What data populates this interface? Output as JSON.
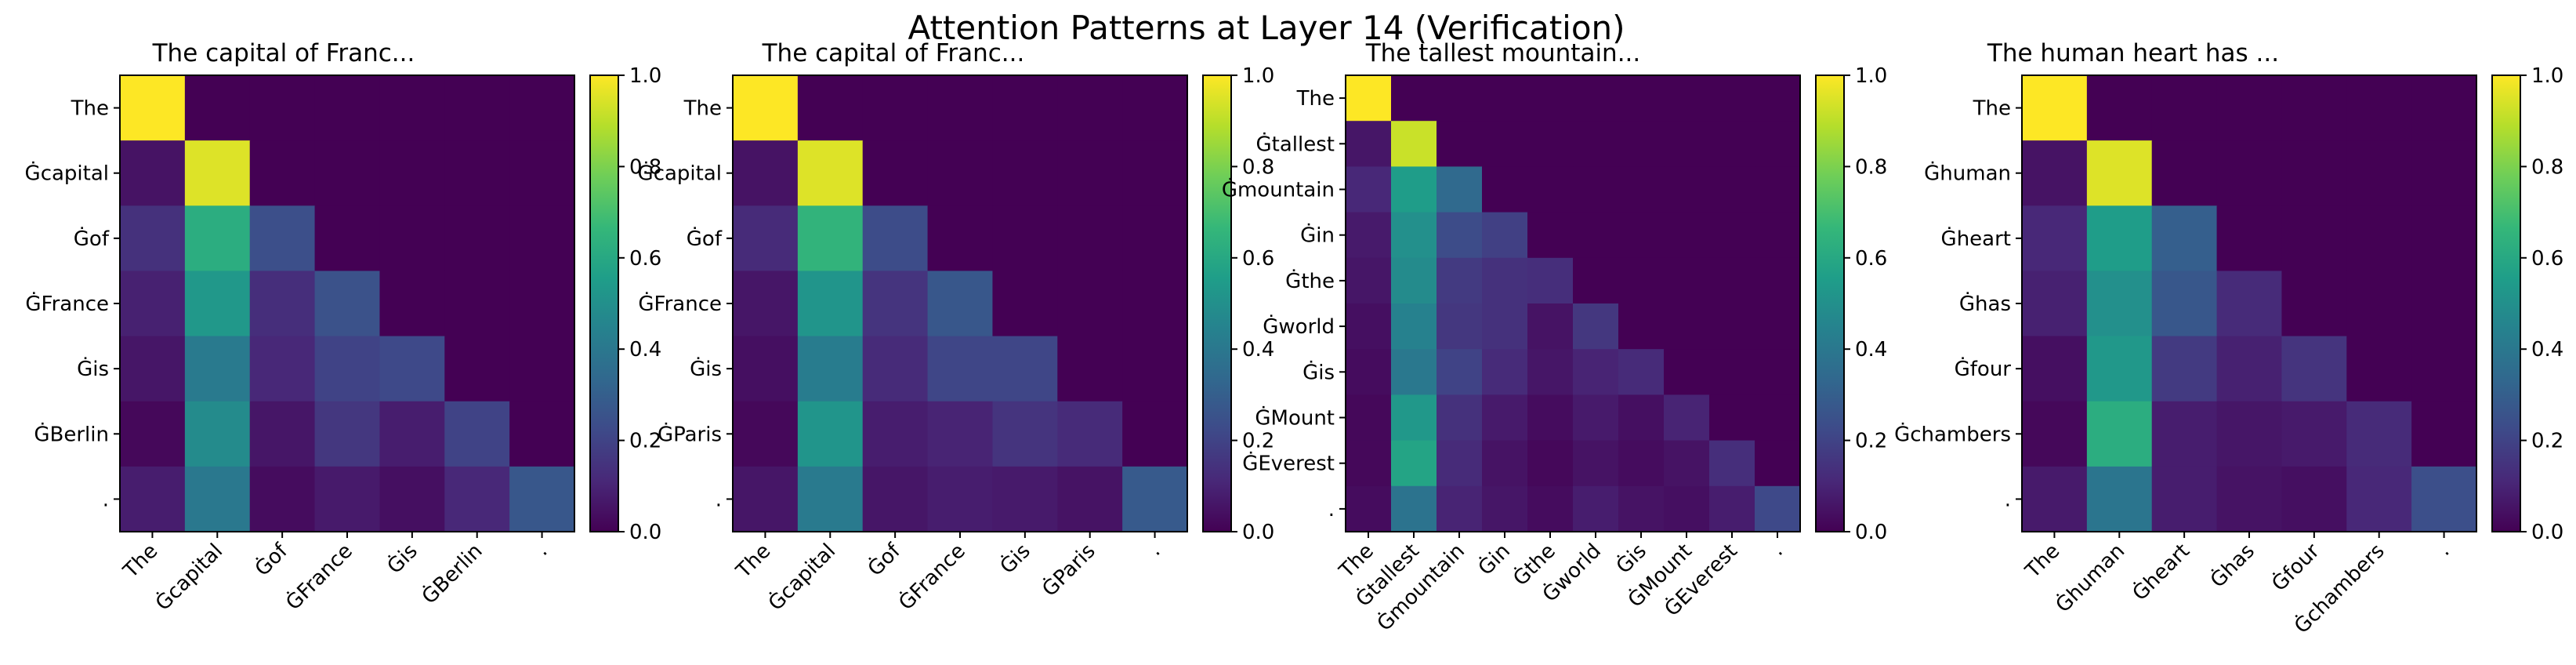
{
  "figure": {
    "title": "Attention Patterns at Layer 14 (Verification)"
  },
  "colormap": {
    "name": "viridis",
    "stops": [
      "#440154",
      "#482878",
      "#3e4a89",
      "#31688e",
      "#26828e",
      "#1f9e89",
      "#35b779",
      "#6ece58",
      "#b5de2b",
      "#fde725"
    ]
  },
  "colorbar": {
    "range": [
      0.0,
      1.0
    ],
    "ticks": [
      "0.0",
      "0.2",
      "0.4",
      "0.6",
      "0.8",
      "1.0"
    ]
  },
  "chart_data": [
    {
      "type": "heatmap",
      "title": "The capital of Franc...",
      "tokens": [
        "The",
        "Ġcapital",
        "Ġof",
        "ĠFrance",
        "Ġis",
        "ĠBerlin",
        "."
      ],
      "values": [
        [
          1.0,
          0.0,
          0.0,
          0.0,
          0.0,
          0.0,
          0.0
        ],
        [
          0.05,
          0.95,
          0.0,
          0.0,
          0.0,
          0.0,
          0.0
        ],
        [
          0.14,
          0.62,
          0.24,
          0.0,
          0.0,
          0.0,
          0.0
        ],
        [
          0.09,
          0.53,
          0.13,
          0.25,
          0.0,
          0.0,
          0.0
        ],
        [
          0.06,
          0.41,
          0.11,
          0.2,
          0.22,
          0.0,
          0.0
        ],
        [
          0.02,
          0.48,
          0.06,
          0.16,
          0.08,
          0.2,
          0.0
        ],
        [
          0.08,
          0.4,
          0.03,
          0.07,
          0.04,
          0.11,
          0.27
        ]
      ]
    },
    {
      "type": "heatmap",
      "title": "The capital of Franc...",
      "tokens": [
        "The",
        "Ġcapital",
        "Ġof",
        "ĠFrance",
        "Ġis",
        "ĠParis",
        "."
      ],
      "values": [
        [
          1.0,
          0.0,
          0.0,
          0.0,
          0.0,
          0.0,
          0.0
        ],
        [
          0.05,
          0.95,
          0.0,
          0.0,
          0.0,
          0.0,
          0.0
        ],
        [
          0.12,
          0.65,
          0.23,
          0.0,
          0.0,
          0.0,
          0.0
        ],
        [
          0.06,
          0.52,
          0.15,
          0.27,
          0.0,
          0.0,
          0.0
        ],
        [
          0.04,
          0.42,
          0.12,
          0.21,
          0.21,
          0.0,
          0.0
        ],
        [
          0.02,
          0.52,
          0.08,
          0.1,
          0.15,
          0.12,
          0.0
        ],
        [
          0.06,
          0.41,
          0.06,
          0.08,
          0.07,
          0.05,
          0.28
        ]
      ]
    },
    {
      "type": "heatmap",
      "title": "The tallest mountain...",
      "tokens": [
        "The",
        "Ġtallest",
        "Ġmountain",
        "Ġin",
        "Ġthe",
        "Ġworld",
        "Ġis",
        "ĠMount",
        "ĠEverest",
        "."
      ],
      "values": [
        [
          1.0,
          0.0,
          0.0,
          0.0,
          0.0,
          0.0,
          0.0,
          0.0,
          0.0,
          0.0
        ],
        [
          0.06,
          0.92,
          0.0,
          0.0,
          0.0,
          0.0,
          0.0,
          0.0,
          0.0,
          0.0
        ],
        [
          0.11,
          0.55,
          0.34,
          0.0,
          0.0,
          0.0,
          0.0,
          0.0,
          0.0,
          0.0
        ],
        [
          0.07,
          0.5,
          0.23,
          0.19,
          0.0,
          0.0,
          0.0,
          0.0,
          0.0,
          0.0
        ],
        [
          0.06,
          0.48,
          0.17,
          0.14,
          0.13,
          0.0,
          0.0,
          0.0,
          0.0,
          0.0
        ],
        [
          0.04,
          0.44,
          0.16,
          0.14,
          0.05,
          0.16,
          0.0,
          0.0,
          0.0,
          0.0
        ],
        [
          0.03,
          0.4,
          0.2,
          0.12,
          0.06,
          0.1,
          0.12,
          0.0,
          0.0,
          0.0
        ],
        [
          0.02,
          0.53,
          0.14,
          0.07,
          0.03,
          0.07,
          0.04,
          0.1,
          0.0,
          0.0
        ],
        [
          0.02,
          0.58,
          0.12,
          0.05,
          0.02,
          0.05,
          0.03,
          0.05,
          0.13,
          0.0
        ],
        [
          0.03,
          0.38,
          0.1,
          0.06,
          0.03,
          0.08,
          0.05,
          0.04,
          0.08,
          0.22
        ]
      ]
    },
    {
      "type": "heatmap",
      "title": "The human heart has ...",
      "tokens": [
        "The",
        "Ġhuman",
        "Ġheart",
        "Ġhas",
        "Ġfour",
        "Ġchambers",
        "."
      ],
      "values": [
        [
          1.0,
          0.0,
          0.0,
          0.0,
          0.0,
          0.0,
          0.0
        ],
        [
          0.05,
          0.95,
          0.0,
          0.0,
          0.0,
          0.0,
          0.0
        ],
        [
          0.11,
          0.55,
          0.3,
          0.0,
          0.0,
          0.0,
          0.0
        ],
        [
          0.09,
          0.5,
          0.27,
          0.12,
          0.0,
          0.0,
          0.0
        ],
        [
          0.04,
          0.53,
          0.17,
          0.09,
          0.15,
          0.0,
          0.0
        ],
        [
          0.02,
          0.62,
          0.08,
          0.06,
          0.07,
          0.12,
          0.0
        ],
        [
          0.07,
          0.39,
          0.08,
          0.05,
          0.04,
          0.11,
          0.24
        ]
      ]
    }
  ]
}
